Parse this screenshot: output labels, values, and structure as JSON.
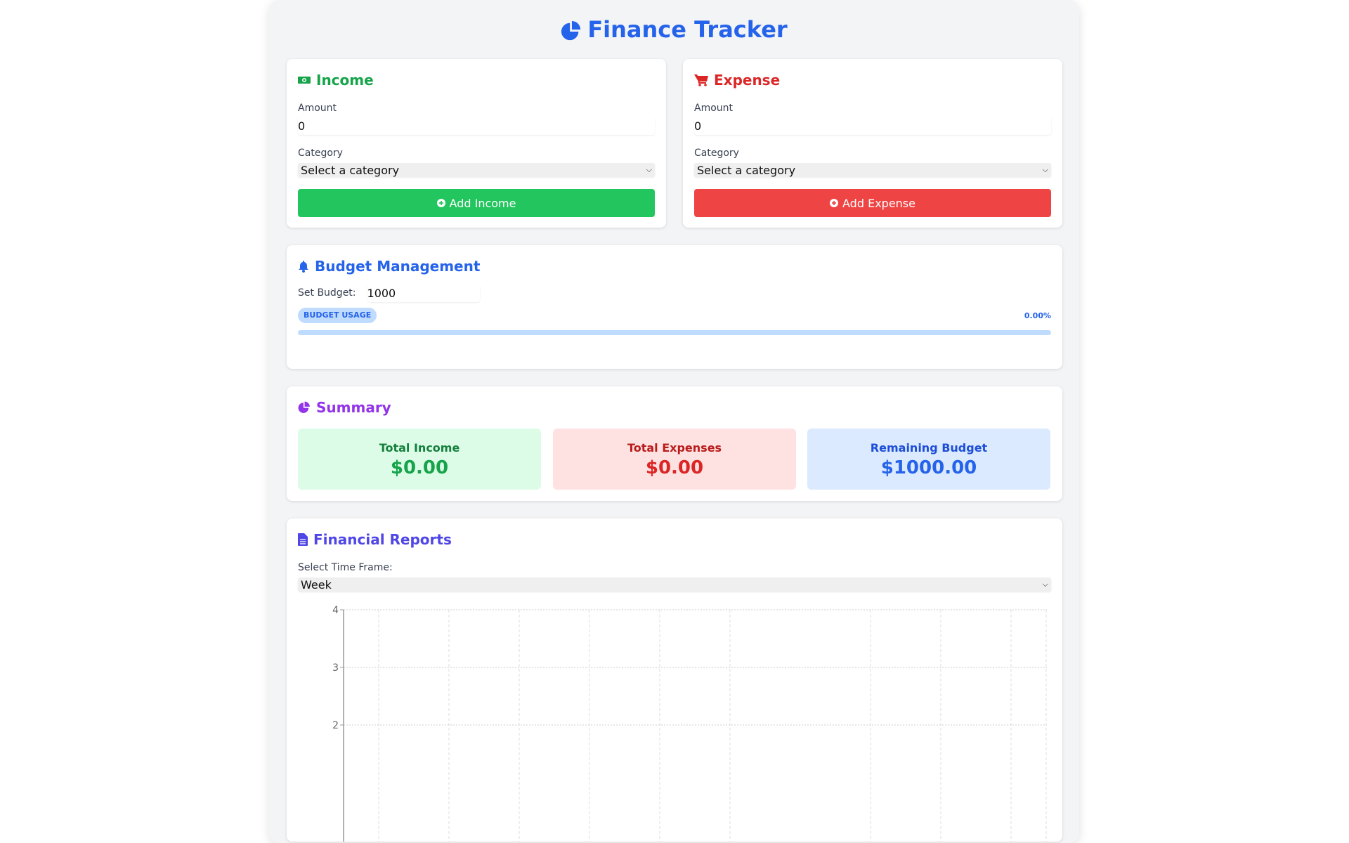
{
  "header": {
    "title": "Finance Tracker",
    "icon": "chart-pie-icon"
  },
  "income": {
    "title": "Income",
    "icon": "money-bill-icon",
    "amount_label": "Amount",
    "amount_value": "0",
    "category_label": "Category",
    "category_value": "Select a category",
    "button": "Add Income",
    "color": "#16a34a",
    "button_color": "#22c55e"
  },
  "expense": {
    "title": "Expense",
    "icon": "shopping-cart-icon",
    "amount_label": "Amount",
    "amount_value": "0",
    "category_label": "Category",
    "category_value": "Select a category",
    "button": "Add Expense",
    "color": "#dc2626",
    "button_color": "#ef4444"
  },
  "budget": {
    "title": "Budget Management",
    "icon": "bell-icon",
    "set_label": "Set Budget:",
    "value": "1000",
    "usage_badge": "BUDGET USAGE",
    "usage_text": "0.00%",
    "usage_fraction": 0
  },
  "summary": {
    "title": "Summary",
    "icon": "chart-pie-icon",
    "items": [
      {
        "label": "Total Income",
        "value": "$0.00"
      },
      {
        "label": "Total Expenses",
        "value": "$0.00"
      },
      {
        "label": "Remaining Budget",
        "value": "$1000.00"
      }
    ]
  },
  "reports": {
    "title": "Financial Reports",
    "icon": "file-icon",
    "timeframe_label": "Select Time Frame:",
    "timeframe_value": "Week"
  },
  "chart_data": {
    "type": "line",
    "title": "",
    "xlabel": "",
    "ylabel": "",
    "ylim": [
      0,
      4
    ],
    "yticks": [
      "4",
      "3",
      "2"
    ],
    "series": [],
    "grid": true
  }
}
